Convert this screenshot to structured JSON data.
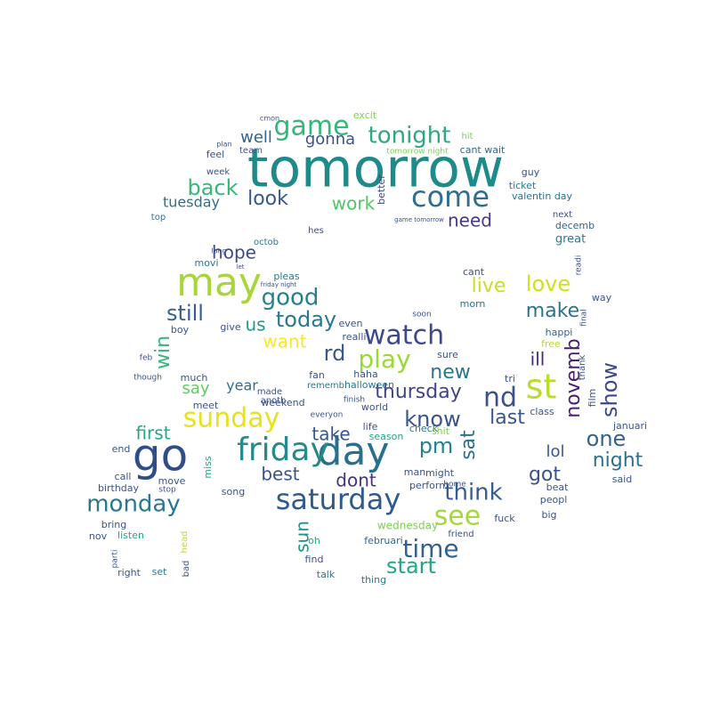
{
  "words": [
    {
      "text": "tomorrow",
      "color": "#1f8a8a"
    },
    {
      "text": "go",
      "color": "#2f4d8a"
    },
    {
      "text": "day",
      "color": "#2b6f8e"
    },
    {
      "text": "may",
      "color": "#a8d53a"
    },
    {
      "text": "friday",
      "color": "#26898b"
    },
    {
      "text": "saturday",
      "color": "#2e5b8c"
    },
    {
      "text": "sunday",
      "color": "#e6e419"
    },
    {
      "text": "st",
      "color": "#b8de29"
    },
    {
      "text": "watch",
      "color": "#3d4a8a"
    },
    {
      "text": "come",
      "color": "#2f6e8e"
    },
    {
      "text": "see",
      "color": "#a2da37"
    },
    {
      "text": "monday",
      "color": "#2a778e"
    },
    {
      "text": "time",
      "color": "#33618d"
    },
    {
      "text": "play",
      "color": "#9ad83a"
    },
    {
      "text": "game",
      "color": "#35b779"
    },
    {
      "text": "tonight",
      "color": "#2ea87f"
    },
    {
      "text": "nd",
      "color": "#3b518b"
    },
    {
      "text": "think",
      "color": "#365d8d"
    },
    {
      "text": "love",
      "color": "#d0e11c"
    },
    {
      "text": "live",
      "color": "#c9e020"
    },
    {
      "text": "good",
      "color": "#27808e"
    },
    {
      "text": "today",
      "color": "#2a788e"
    },
    {
      "text": "still",
      "color": "#355f8d"
    },
    {
      "text": "know",
      "color": "#3b528b"
    },
    {
      "text": "make",
      "color": "#2b748e"
    },
    {
      "text": "show",
      "color": "#3f4889"
    },
    {
      "text": "thursday",
      "color": "#414487"
    },
    {
      "text": "back",
      "color": "#37b878"
    },
    {
      "text": "novemb",
      "color": "#481f70"
    },
    {
      "text": "sat",
      "color": "#2d708e"
    },
    {
      "text": "pm",
      "color": "#25838e"
    },
    {
      "text": "start",
      "color": "#22a785"
    },
    {
      "text": "one",
      "color": "#33638d"
    },
    {
      "text": "night",
      "color": "#2d708e"
    },
    {
      "text": "new",
      "color": "#2a768e"
    },
    {
      "text": "last",
      "color": "#39568c"
    },
    {
      "text": "want",
      "color": "#fde725"
    },
    {
      "text": "rd",
      "color": "#39568c"
    },
    {
      "text": "look",
      "color": "#39568c"
    },
    {
      "text": "work",
      "color": "#52c569"
    },
    {
      "text": "us",
      "color": "#1f9a8a"
    },
    {
      "text": "hope",
      "color": "#3e4a89"
    },
    {
      "text": "win",
      "color": "#32b67a"
    },
    {
      "text": "got",
      "color": "#3b528b"
    },
    {
      "text": "take",
      "color": "#38588c"
    },
    {
      "text": "best",
      "color": "#3a548c"
    },
    {
      "text": "dont",
      "color": "#46337e"
    },
    {
      "text": "first",
      "color": "#22a884"
    },
    {
      "text": "need",
      "color": "#443a83"
    },
    {
      "text": "ill",
      "color": "#482878"
    },
    {
      "text": "sun",
      "color": "#21918c"
    },
    {
      "text": "gonna",
      "color": "#3b528b"
    },
    {
      "text": "well",
      "color": "#33638d"
    },
    {
      "text": "say",
      "color": "#63cb5f"
    },
    {
      "text": "lol",
      "color": "#38588c"
    },
    {
      "text": "year",
      "color": "#2c728e"
    },
    {
      "text": "tuesday",
      "color": "#2d708e"
    },
    {
      "text": "wednesday",
      "color": "#7ad151"
    },
    {
      "text": "even",
      "color": "#3b528b"
    },
    {
      "text": "realli",
      "color": "#3b528b"
    },
    {
      "text": "morn",
      "color": "#2c728e"
    },
    {
      "text": "happi",
      "color": "#33638d"
    },
    {
      "text": "free",
      "color": "#b5de2b"
    },
    {
      "text": "great",
      "color": "#2a788e"
    },
    {
      "text": "januari",
      "color": "#39568c"
    },
    {
      "text": "februari",
      "color": "#31688e"
    },
    {
      "text": "decemb",
      "color": "#33638d"
    },
    {
      "text": "next",
      "color": "#3b528b"
    },
    {
      "text": "valentin day",
      "color": "#2c728e"
    },
    {
      "text": "ticket",
      "color": "#2a788e"
    },
    {
      "text": "guy",
      "color": "#3b528b"
    },
    {
      "text": "better",
      "color": "#3e4989"
    },
    {
      "text": "cant wait",
      "color": "#31688e"
    },
    {
      "text": "hit",
      "color": "#7ad151"
    },
    {
      "text": "excit",
      "color": "#7ad151"
    },
    {
      "text": "team",
      "color": "#3b528b"
    },
    {
      "text": "feel",
      "color": "#3b528b"
    },
    {
      "text": "week",
      "color": "#3b528b"
    },
    {
      "text": "plan",
      "color": "#3b528b"
    },
    {
      "text": "top",
      "color": "#2a788e"
    },
    {
      "text": "hes",
      "color": "#3b528b"
    },
    {
      "text": "cmon",
      "color": "#3b528b"
    },
    {
      "text": "tomorrow night",
      "color": "#7ad151"
    },
    {
      "text": "game tomorrow",
      "color": "#3b528b"
    },
    {
      "text": "octob",
      "color": "#2a788e"
    },
    {
      "text": "movi",
      "color": "#2a788e"
    },
    {
      "text": "pleas",
      "color": "#2a788e"
    },
    {
      "text": "friday night",
      "color": "#3b528b"
    },
    {
      "text": "long",
      "color": "#3b528b"
    },
    {
      "text": "let",
      "color": "#3b528b"
    },
    {
      "text": "boy",
      "color": "#3b528b"
    },
    {
      "text": "give",
      "color": "#3b528b"
    },
    {
      "text": "much",
      "color": "#3b528b"
    },
    {
      "text": "though",
      "color": "#3b528b"
    },
    {
      "text": "feb",
      "color": "#3b528b"
    },
    {
      "text": "made",
      "color": "#3b528b"
    },
    {
      "text": "anoth",
      "color": "#3b528b"
    },
    {
      "text": "meet",
      "color": "#3b528b"
    },
    {
      "text": "weekend",
      "color": "#3b528b"
    },
    {
      "text": "fan",
      "color": "#3b528b"
    },
    {
      "text": "haha",
      "color": "#3b528b"
    },
    {
      "text": "halloween",
      "color": "#2a788e"
    },
    {
      "text": "rememb",
      "color": "#2a788e"
    },
    {
      "text": "finish",
      "color": "#3b528b"
    },
    {
      "text": "everyon",
      "color": "#3b528b"
    },
    {
      "text": "world",
      "color": "#3b528b"
    },
    {
      "text": "check",
      "color": "#2a788e"
    },
    {
      "text": "life",
      "color": "#3b528b"
    },
    {
      "text": "season",
      "color": "#22a884"
    },
    {
      "text": "shit",
      "color": "#7ad151"
    },
    {
      "text": "end",
      "color": "#3b528b"
    },
    {
      "text": "call",
      "color": "#3b528b"
    },
    {
      "text": "birthday",
      "color": "#3b528b"
    },
    {
      "text": "bring",
      "color": "#3b528b"
    },
    {
      "text": "listen",
      "color": "#22a884"
    },
    {
      "text": "nov",
      "color": "#3b528b"
    },
    {
      "text": "parti",
      "color": "#3b528b"
    },
    {
      "text": "right",
      "color": "#3b528b"
    },
    {
      "text": "set",
      "color": "#2a788e"
    },
    {
      "text": "bad",
      "color": "#3b528b"
    },
    {
      "text": "head",
      "color": "#b5de2b"
    },
    {
      "text": "miss",
      "color": "#22a884"
    },
    {
      "text": "move",
      "color": "#3b528b"
    },
    {
      "text": "stop",
      "color": "#3b528b"
    },
    {
      "text": "song",
      "color": "#3b528b"
    },
    {
      "text": "man",
      "color": "#3b528b"
    },
    {
      "text": "might",
      "color": "#3b528b"
    },
    {
      "text": "perform",
      "color": "#3b528b"
    },
    {
      "text": "home",
      "color": "#3b528b"
    },
    {
      "text": "friend",
      "color": "#3b528b"
    },
    {
      "text": "fuck",
      "color": "#3b528b"
    },
    {
      "text": "peopl",
      "color": "#3b528b"
    },
    {
      "text": "big",
      "color": "#3b528b"
    },
    {
      "text": "beat",
      "color": "#3b528b"
    },
    {
      "text": "class",
      "color": "#3b528b"
    },
    {
      "text": "said",
      "color": "#3b528b"
    },
    {
      "text": "way",
      "color": "#3b528b"
    },
    {
      "text": "tri",
      "color": "#3b528b"
    },
    {
      "text": "sure",
      "color": "#3b528b"
    },
    {
      "text": "find",
      "color": "#3b528b"
    },
    {
      "text": "talk",
      "color": "#2a788e"
    },
    {
      "text": "thing",
      "color": "#2a788e"
    },
    {
      "text": "oh",
      "color": "#22a884"
    },
    {
      "text": "cant",
      "color": "#3b528b"
    },
    {
      "text": "soon",
      "color": "#3b528b"
    },
    {
      "text": "film",
      "color": "#3b528b"
    },
    {
      "text": "thank",
      "color": "#3b528b"
    },
    {
      "text": "final",
      "color": "#3b528b"
    },
    {
      "text": "readi",
      "color": "#3b528b"
    }
  ]
}
